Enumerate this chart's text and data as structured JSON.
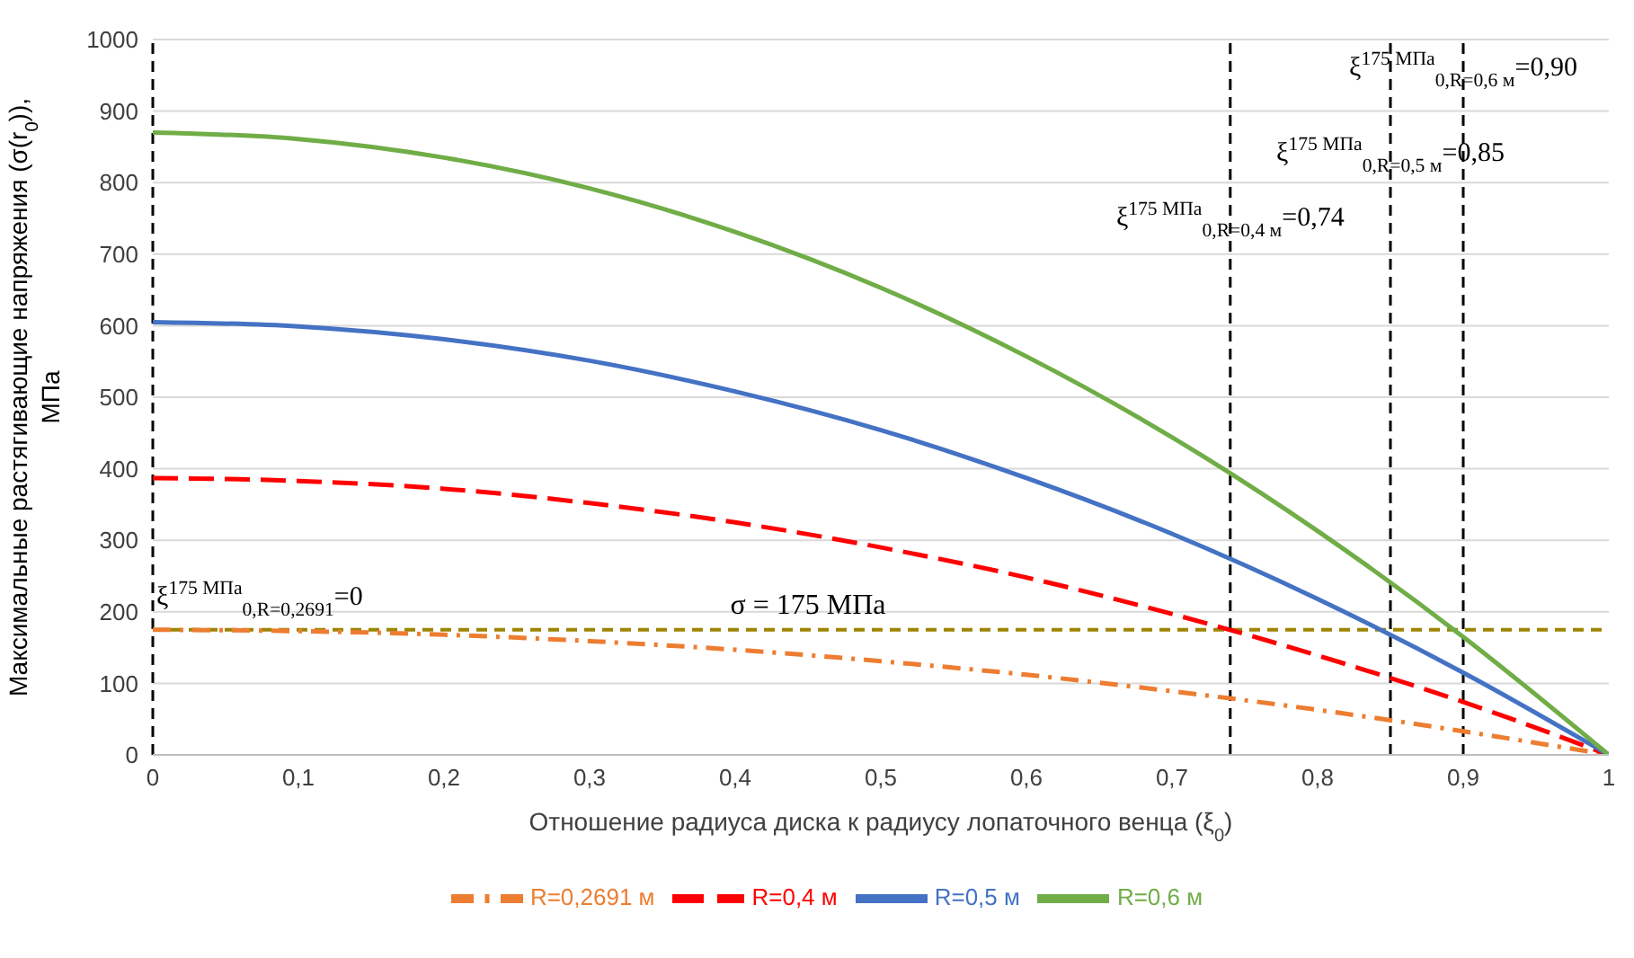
{
  "chart_data": {
    "type": "line",
    "xlabel": "Отношение радиуса диска к радиусу лопаточного венца (ξ$_{0}$)",
    "ylabel": "Максимальные растягивающие напряжения (σ(r$_{0}$)), МПа",
    "x": [
      0,
      0.1,
      0.2,
      0.3,
      0.4,
      0.5,
      0.6,
      0.7,
      0.8,
      0.9,
      1
    ],
    "series": [
      {
        "name": "R=0,2691 м",
        "color": "#ed7d31",
        "line_style": "dashdot",
        "values": [
          175,
          173,
          168,
          159,
          147,
          131,
          112,
          89,
          63,
          33,
          0
        ]
      },
      {
        "name": "R=0,4 м",
        "color": "#ff0000",
        "line_style": "dashed",
        "values": [
          387,
          383,
          372,
          352,
          325,
          290,
          248,
          197,
          139,
          74,
          0
        ]
      },
      {
        "name": "R=0,5 м",
        "color": "#4472c4",
        "line_style": "solid",
        "values": [
          605,
          599,
          581,
          551,
          508,
          454,
          387,
          309,
          218,
          115,
          0
        ]
      },
      {
        "name": "R=0,6 м",
        "color": "#70ad47",
        "line_style": "solid",
        "values": [
          870,
          861,
          835,
          792,
          731,
          653,
          557,
          444,
          313,
          165,
          0
        ]
      }
    ],
    "xlim": [
      0,
      1
    ],
    "xticks": [
      0,
      {
        "value": 0.1,
        "label": "0,1"
      },
      {
        "value": 0.2,
        "label": "0,2"
      },
      {
        "value": 0.3,
        "label": "0,3"
      },
      {
        "value": 0.4,
        "label": "0,4"
      },
      {
        "value": 0.5,
        "label": "0,5"
      },
      {
        "value": 0.6,
        "label": "0,6"
      },
      {
        "value": 0.7,
        "label": "0,7"
      },
      {
        "value": 0.8,
        "label": "0,8"
      },
      {
        "value": 0.9,
        "label": "0,9"
      },
      1
    ],
    "ylim": [
      0,
      1000
    ],
    "yticks": [
      0,
      100,
      200,
      300,
      400,
      500,
      600,
      700,
      800,
      900,
      1000
    ],
    "grid": "y",
    "legend": "bottom",
    "marker": "none",
    "ref_lines": [
      {
        "axis": "y",
        "value": 175,
        "label": "σ = 175 МПа",
        "color": "#9c8500",
        "line_style": "dashed"
      },
      {
        "axis": "x",
        "value": 0,
        "label": "ξ$^{175 МПа}$$_{0,R=0,2691}$=0",
        "color": "#000000",
        "line_style": "dashed"
      },
      {
        "axis": "x",
        "value": 0.74,
        "label": "ξ$^{175 МПа}$$_{0,R=0,4 м}$=0,74",
        "color": "#000000",
        "line_style": "dashed"
      },
      {
        "axis": "x",
        "value": 0.85,
        "label": "ξ$^{175 МПа}$$_{0,R=0,5 м}$=0,85",
        "color": "#000000",
        "line_style": "dashed"
      },
      {
        "axis": "x",
        "value": 0.9,
        "label": "ξ$^{175 МПа}$$_{0,R=0,6 м}$=0,90",
        "color": "#000000",
        "line_style": "dashed"
      }
    ]
  }
}
